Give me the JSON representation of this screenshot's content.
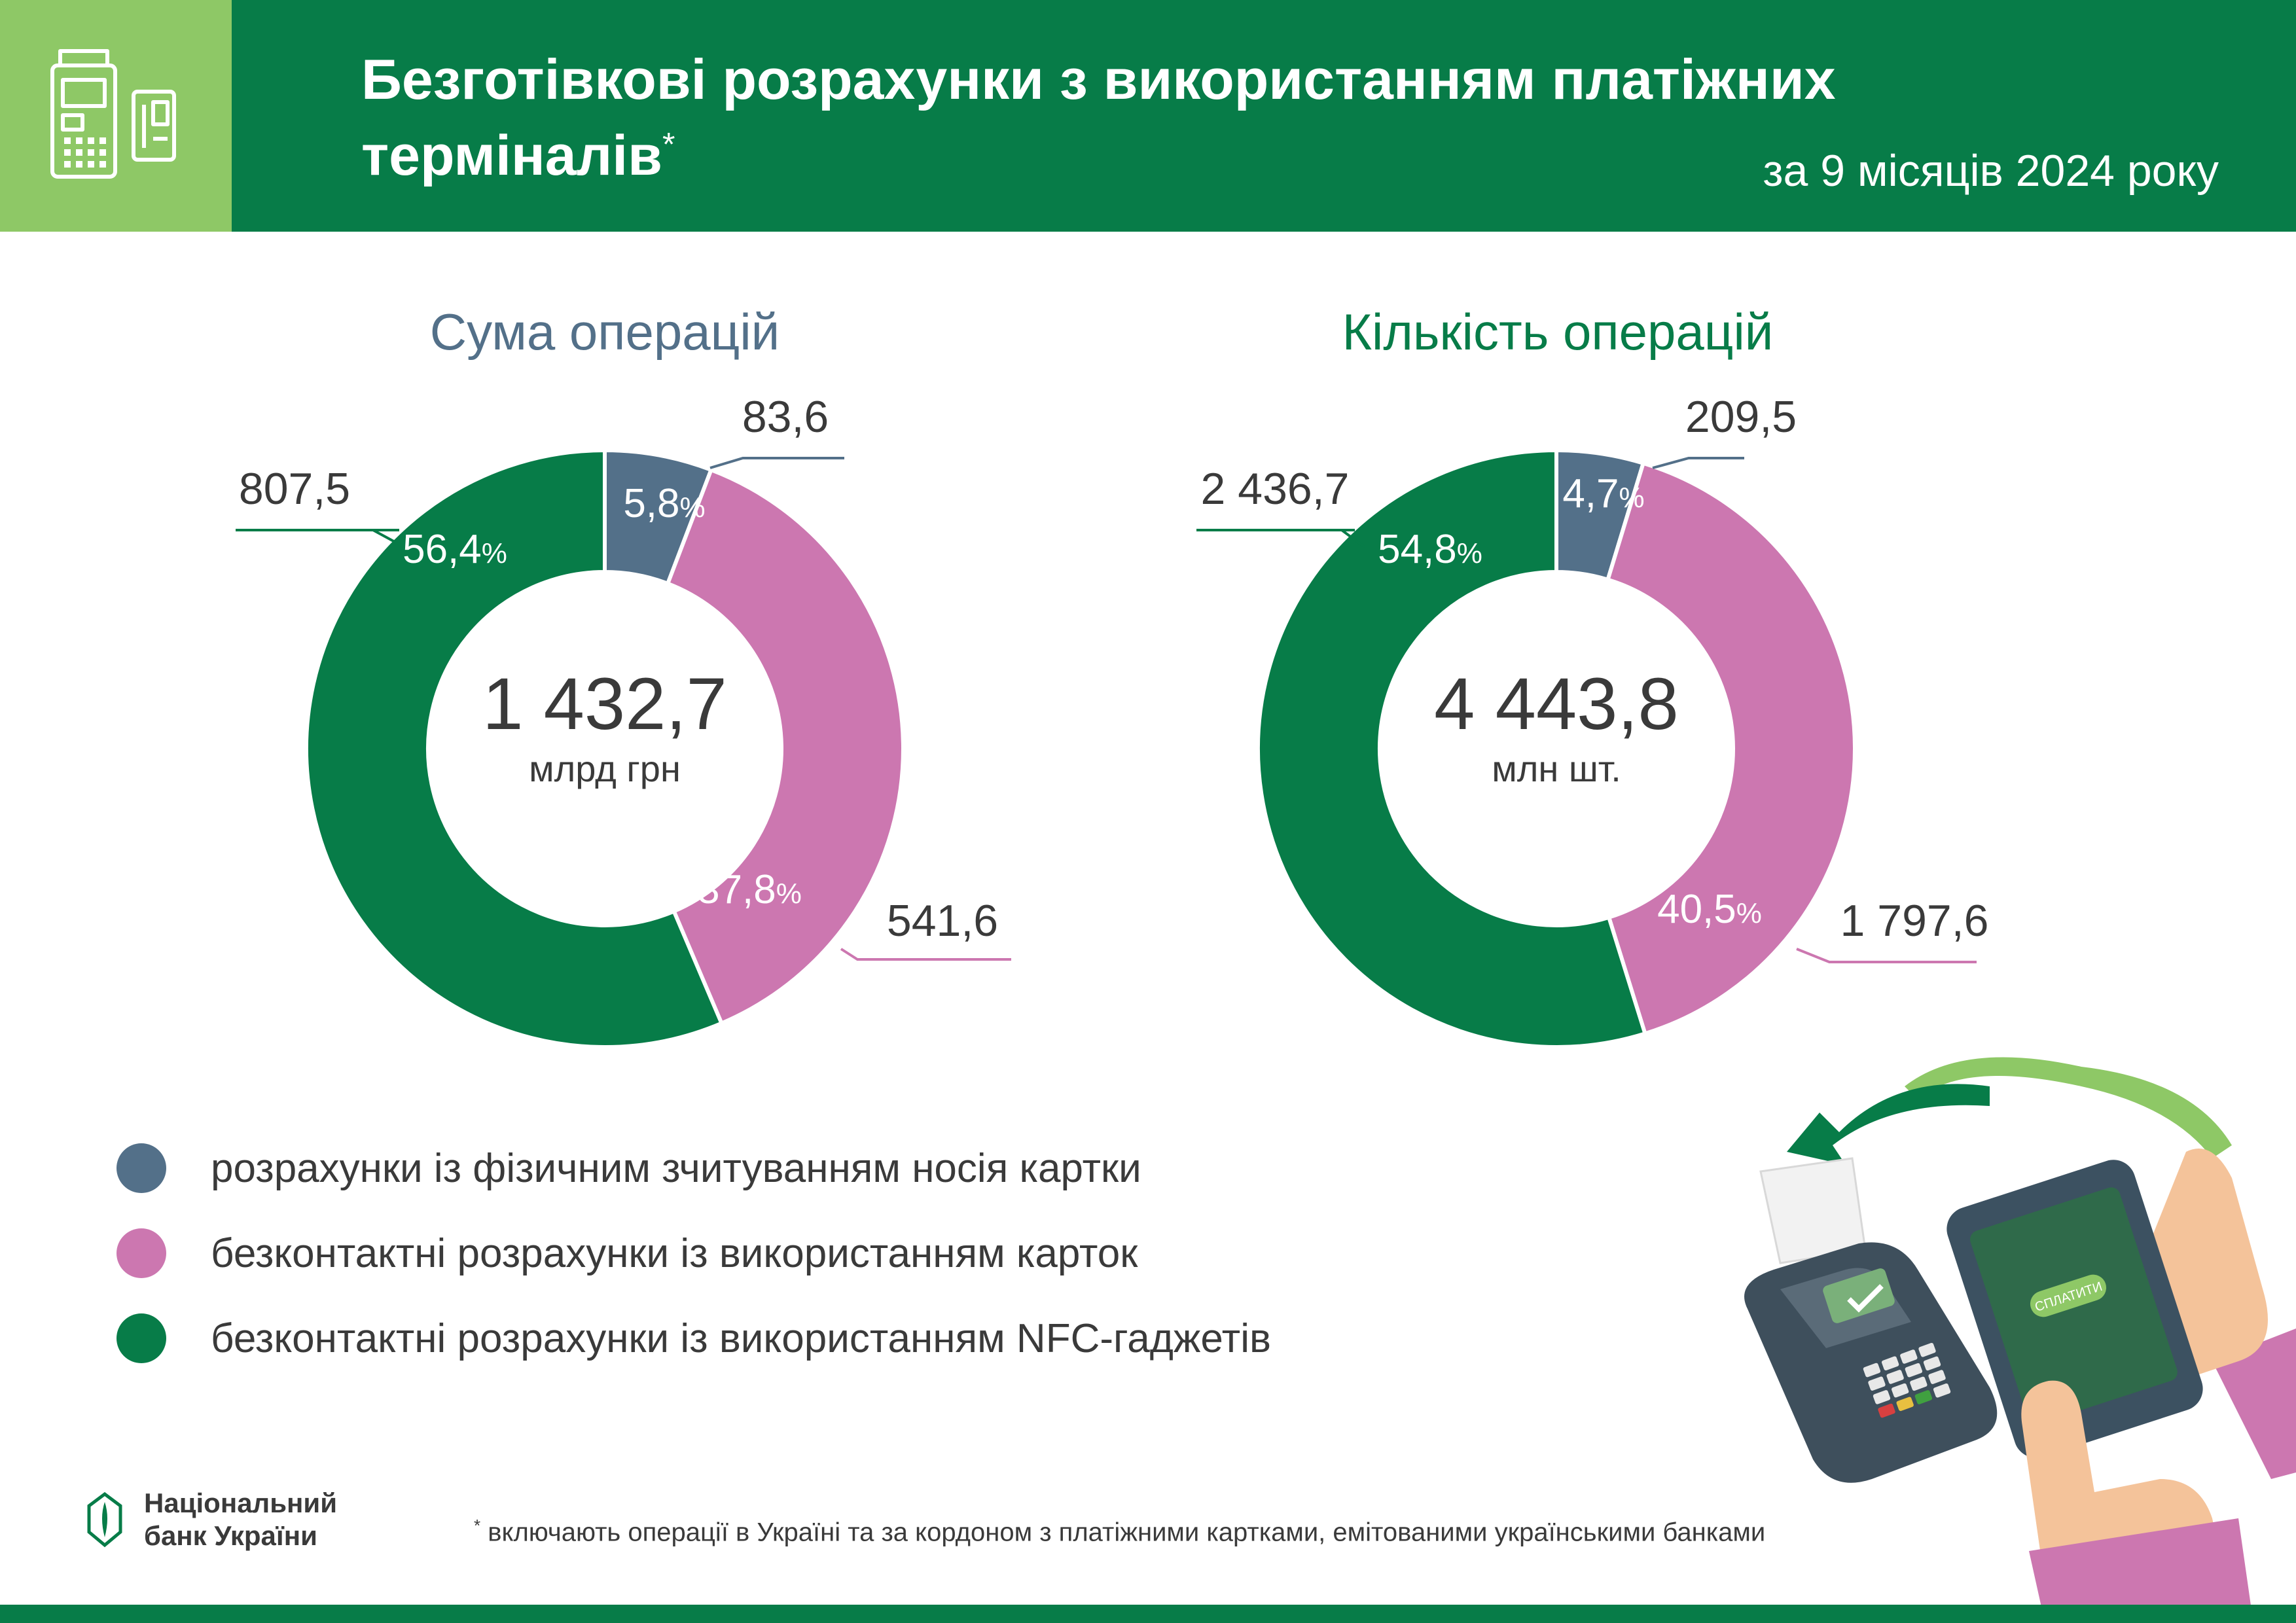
{
  "header": {
    "title_line1": "Безготівкові розрахунки з використанням платіжних",
    "title_line2": "терміналів",
    "title_mark": "*",
    "period": "за 9 місяців 2024 року",
    "icon": "pos-terminal-icon"
  },
  "colors": {
    "green": "#077c48",
    "light_green": "#8ec866",
    "blue_grey": "#537089",
    "pink": "#cc77b0"
  },
  "chart_data": [
    {
      "type": "donut",
      "title": "Сума операцій",
      "total_label": "1 432,7",
      "unit": "млрд грн",
      "series": [
        {
          "name": "розрахунки із фізичним зчитуванням носія картки",
          "value": 83.6,
          "value_label": "83,6",
          "percent": 5.8,
          "percent_label": "5,8",
          "color": "#537089"
        },
        {
          "name": "безконтактні розрахунки із використанням карток",
          "value": 541.6,
          "value_label": "541,6",
          "percent": 37.8,
          "percent_label": "37,8",
          "color": "#cc77b0"
        },
        {
          "name": "безконтактні розрахунки із використанням NFC-гаджетів",
          "value": 807.5,
          "value_label": "807,5",
          "percent": 56.4,
          "percent_label": "56,4",
          "color": "#077c48"
        }
      ]
    },
    {
      "type": "donut",
      "title": "Кількість операцій",
      "total_label": "4 443,8",
      "unit": "млн шт.",
      "series": [
        {
          "name": "розрахунки із фізичним зчитуванням носія картки",
          "value": 209.5,
          "value_label": "209,5",
          "percent": 4.7,
          "percent_label": "4,7",
          "color": "#537089"
        },
        {
          "name": "безконтактні розрахунки із використанням карток",
          "value": 1797.6,
          "value_label": "1 797,6",
          "percent": 40.5,
          "percent_label": "40,5",
          "color": "#cc77b0"
        },
        {
          "name": "безконтактні розрахунки із використанням NFC-гаджетів",
          "value": 2436.7,
          "value_label": "2 436,7",
          "percent": 54.8,
          "percent_label": "54,8",
          "color": "#077c48"
        }
      ]
    }
  ],
  "percent_sign": "%",
  "legend": [
    {
      "label": "розрахунки із фізичним зчитуванням носія картки",
      "color": "#537089"
    },
    {
      "label": "безконтактні розрахунки із використанням карток",
      "color": "#cc77b0"
    },
    {
      "label": "безконтактні розрахунки із використанням NFC-гаджетів",
      "color": "#077c48"
    }
  ],
  "footnote": {
    "mark": "*",
    "text": " включають операції в Україні та за кордоном з платіжними картками, емітованими українськими банками"
  },
  "logo": {
    "line1": "Національний",
    "line2": "банк України"
  },
  "illustration": {
    "button_label": "СПЛАТИТИ"
  }
}
